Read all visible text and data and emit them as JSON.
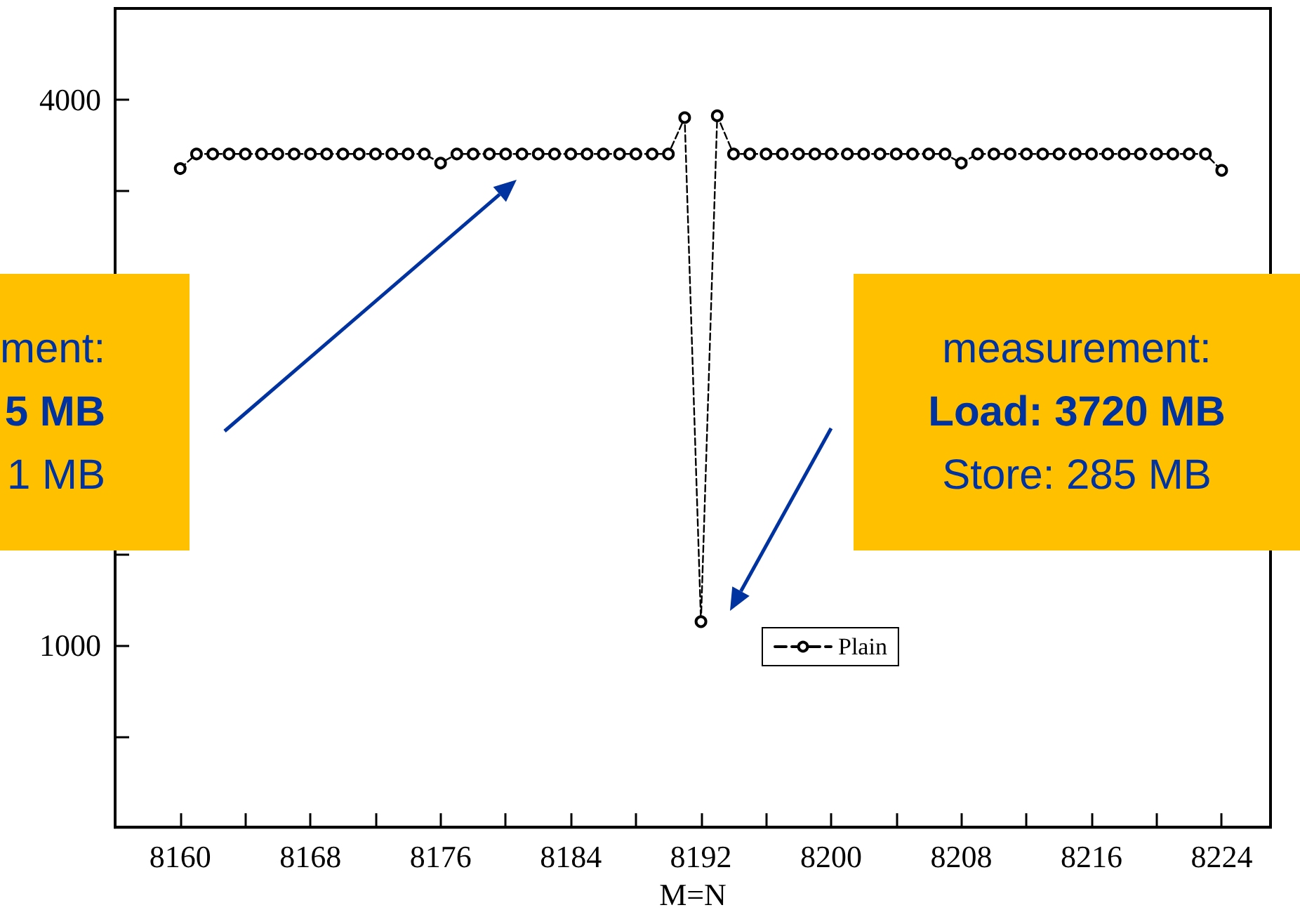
{
  "chart_data": {
    "type": "line",
    "xlabel": "M=N",
    "x": [
      8160,
      8161,
      8162,
      8163,
      8164,
      8165,
      8166,
      8167,
      8168,
      8169,
      8170,
      8171,
      8172,
      8173,
      8174,
      8175,
      8176,
      8177,
      8178,
      8179,
      8180,
      8181,
      8182,
      8183,
      8184,
      8185,
      8186,
      8187,
      8188,
      8189,
      8190,
      8191,
      8192,
      8193,
      8194,
      8195,
      8196,
      8197,
      8198,
      8199,
      8200,
      8201,
      8202,
      8203,
      8204,
      8205,
      8206,
      8207,
      8208,
      8209,
      8210,
      8211,
      8212,
      8213,
      8214,
      8215,
      8216,
      8217,
      8218,
      8219,
      8220,
      8221,
      8222,
      8223,
      8224
    ],
    "series": [
      {
        "name": "Plain",
        "color": "#000000",
        "values": [
          3620,
          3700,
          3700,
          3700,
          3700,
          3700,
          3700,
          3700,
          3700,
          3700,
          3700,
          3700,
          3700,
          3700,
          3700,
          3700,
          3650,
          3700,
          3700,
          3700,
          3700,
          3700,
          3700,
          3700,
          3700,
          3700,
          3700,
          3700,
          3700,
          3700,
          3700,
          3900,
          1130,
          3910,
          3700,
          3700,
          3700,
          3700,
          3700,
          3700,
          3700,
          3700,
          3700,
          3700,
          3700,
          3700,
          3700,
          3700,
          3650,
          3700,
          3700,
          3700,
          3700,
          3700,
          3700,
          3700,
          3700,
          3700,
          3700,
          3700,
          3700,
          3700,
          3700,
          3700,
          3610
        ]
      }
    ],
    "xlim": [
      8156,
      8227
    ],
    "xticks": [
      8160,
      {
        "value": 8164,
        "label": null
      },
      8168,
      {
        "value": 8172,
        "label": null
      },
      8176,
      {
        "value": 8180,
        "label": null
      },
      8184,
      {
        "value": 8188,
        "label": null
      },
      8192,
      {
        "value": 8196,
        "label": null
      },
      8200,
      {
        "value": 8204,
        "label": null
      },
      8208,
      {
        "value": 8212,
        "label": null
      },
      8216,
      {
        "value": 8220,
        "label": null
      },
      8224
    ],
    "ylim": [
      0,
      4500
    ],
    "yticks": [
      {
        "value": 500,
        "label": null
      },
      1000,
      {
        "value": 1500,
        "label": null
      },
      {
        "value": 2000,
        "label": null
      },
      {
        "value": 2500,
        "label": null
      },
      {
        "value": 3000,
        "label": null
      },
      {
        "value": 3500,
        "label": null
      },
      4000
    ],
    "marker": "circle",
    "line_style": "dashed",
    "grid": false,
    "legend": "bottom",
    "annotations": [
      "ment:\n5 MB\n1 MB",
      "measurement:\nLoad: 3720 MB\nStore: 285 MB"
    ]
  }
}
